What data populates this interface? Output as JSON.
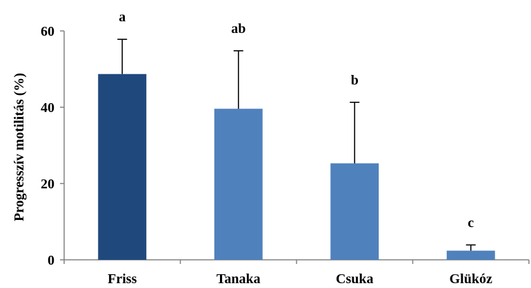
{
  "chart_data": {
    "type": "bar",
    "ylabel": "Progresszív motilitás (%)",
    "xlabel": "",
    "ylim": [
      0,
      60
    ],
    "yticks": [
      0,
      20,
      40,
      60
    ],
    "grid": false,
    "legend": "none",
    "categories": [
      "Friss",
      "Tanaka",
      "Csuka",
      "Glükóz"
    ],
    "values": [
      48.7,
      39.6,
      25.3,
      2.4
    ],
    "error_upper": [
      9.1,
      15.2,
      16.0,
      1.5
    ],
    "significance_labels": [
      "a",
      "ab",
      "b",
      "c"
    ],
    "colors": [
      "#1F497D",
      "#4F81BD",
      "#4F81BD",
      "#4F81BD"
    ]
  }
}
